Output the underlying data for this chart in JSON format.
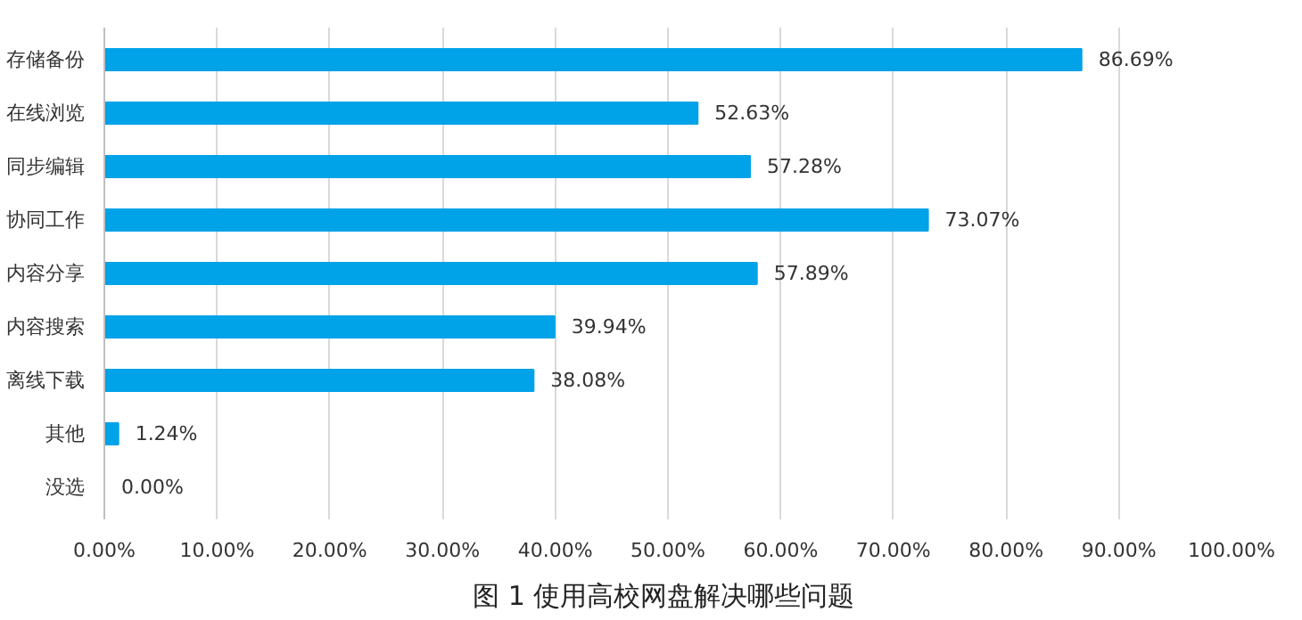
{
  "chart_data": {
    "type": "bar",
    "orientation": "horizontal",
    "title": "图 1  使用高校网盘解决哪些问题",
    "categories": [
      "存储备份",
      "在线浏览",
      "同步编辑",
      "协同工作",
      "内容分享",
      "内容搜索",
      "离线下载",
      "其他",
      "没选"
    ],
    "values": [
      86.69,
      52.63,
      57.28,
      73.07,
      57.89,
      39.94,
      38.08,
      1.24,
      0.0
    ],
    "value_labels": [
      "86.69%",
      "52.63%",
      "57.28%",
      "73.07%",
      "57.89%",
      "39.94%",
      "38.08%",
      "1.24%",
      "0.00%"
    ],
    "color": "#00a2e8",
    "xlim": [
      0,
      100
    ],
    "xticks": [
      {
        "value": 0,
        "label": "0.00%"
      },
      {
        "value": 10,
        "label": "10.00%"
      },
      {
        "value": 20,
        "label": "20.00%"
      },
      {
        "value": 30,
        "label": "30.00%"
      },
      {
        "value": 40,
        "label": "40.00%"
      },
      {
        "value": 50,
        "label": "50.00%"
      },
      {
        "value": 60,
        "label": "60.00%"
      },
      {
        "value": 70,
        "label": "70.00%"
      },
      {
        "value": 80,
        "label": "80.00%"
      },
      {
        "value": 90,
        "label": "90.00%"
      },
      {
        "value": 100,
        "label": "100.00%"
      }
    ],
    "grid": "x"
  }
}
